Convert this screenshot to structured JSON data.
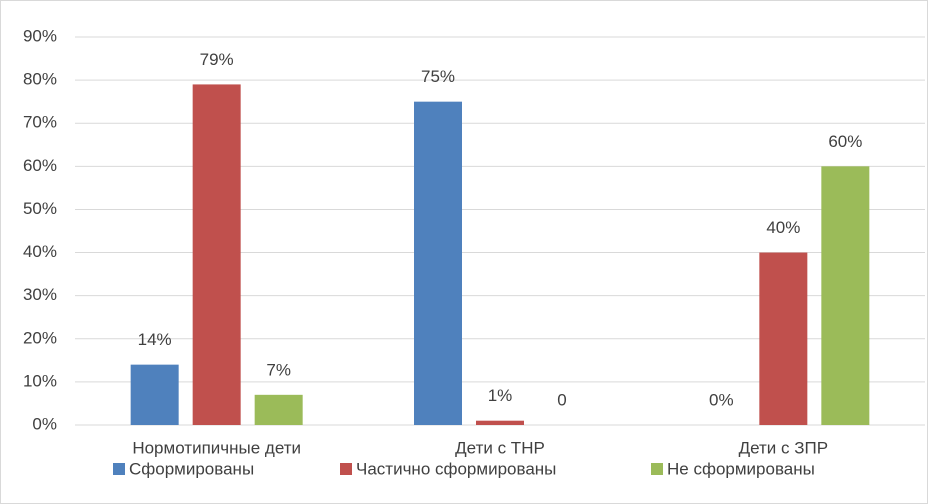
{
  "chart_data": {
    "type": "bar",
    "categories": [
      "Нормотипичные дети",
      "Дети с ТНР",
      "Дети с ЗПР"
    ],
    "series": [
      {
        "name": "Сформированы",
        "color": "#4f81bd",
        "values": [
          14,
          75,
          0
        ],
        "value_labels": [
          "14%",
          "75%",
          "0%"
        ]
      },
      {
        "name": "Частично сформированы",
        "color": "#c0504d",
        "values": [
          79,
          1,
          40
        ],
        "value_labels": [
          "79%",
          "1%",
          "40%"
        ]
      },
      {
        "name": "Не сформированы",
        "color": "#9bbb59",
        "values": [
          7,
          0,
          60
        ],
        "value_labels": [
          "7%",
          "0",
          "60%"
        ]
      }
    ],
    "ylim": [
      0,
      90
    ],
    "yticks": [
      {
        "value": 0,
        "label": "0%"
      },
      {
        "value": 10,
        "label": "10%"
      },
      {
        "value": 20,
        "label": "20%"
      },
      {
        "value": 30,
        "label": "30%"
      },
      {
        "value": 40,
        "label": "40%"
      },
      {
        "value": 50,
        "label": "50%"
      },
      {
        "value": 60,
        "label": "60%"
      },
      {
        "value": 70,
        "label": "70%"
      },
      {
        "value": 80,
        "label": "80%"
      },
      {
        "value": 90,
        "label": "90%"
      }
    ],
    "grid": true,
    "legend": "bottom"
  }
}
